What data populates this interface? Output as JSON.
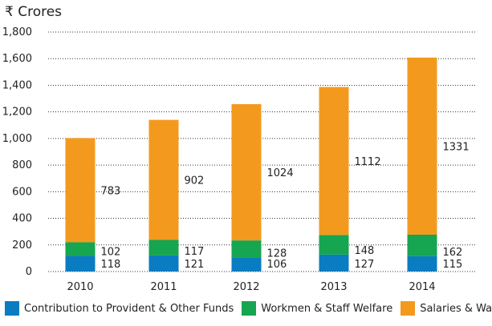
{
  "chart_data": {
    "type": "bar",
    "stacked": true,
    "unit_label": "₹ Crores",
    "categories": [
      "2010",
      "2011",
      "2012",
      "2013",
      "2014"
    ],
    "series": [
      {
        "name": "Contribution to Provident & Other Funds",
        "color": "#0a7cc1",
        "values": [
          118,
          121,
          106,
          127,
          115
        ]
      },
      {
        "name": "Workmen & Staff Welfare",
        "color": "#16a550",
        "values": [
          102,
          117,
          128,
          148,
          162
        ]
      },
      {
        "name": "Salaries & Wages",
        "color": "#f39a1e",
        "values": [
          783,
          902,
          1024,
          1112,
          1331
        ]
      }
    ],
    "ylim": [
      0,
      1800
    ],
    "yticks": [
      "0",
      "200",
      "400",
      "600",
      "800",
      "1,000",
      "1,200",
      "1,400",
      "1,600",
      "1,800"
    ],
    "grid": "dotted horizontal",
    "legend_position": "bottom"
  }
}
